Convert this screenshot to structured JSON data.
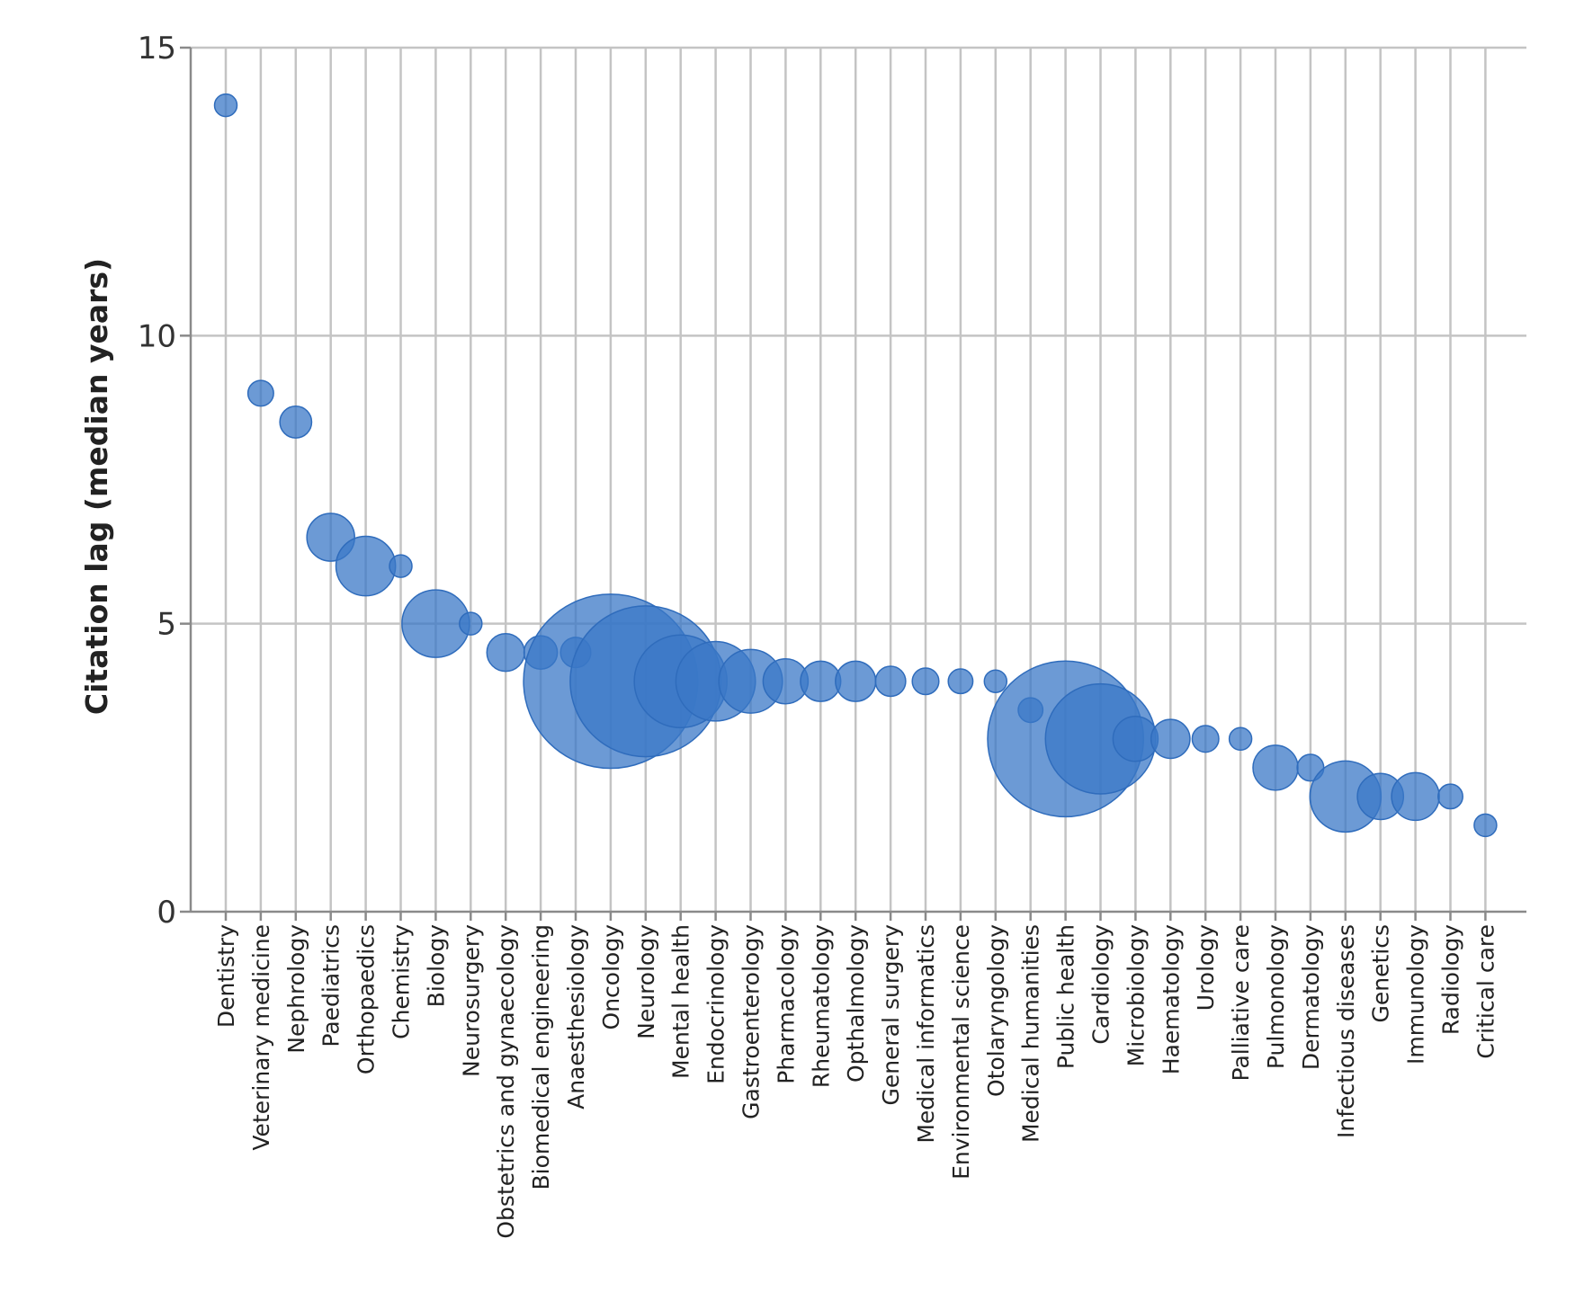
{
  "chart_data": {
    "type": "scatter",
    "subtype": "bubble",
    "title": "",
    "xlabel": "",
    "ylabel": "Citation lag (median years)",
    "ylim": [
      0,
      15
    ],
    "yticks": [
      "0",
      "5",
      "10",
      "15"
    ],
    "grid": true,
    "bubble_color": "#3b78c7",
    "points": [
      {
        "category": "Dentistry",
        "value": 14,
        "size": 1
      },
      {
        "category": "Veterinary medicine",
        "value": 9,
        "size": 1.3
      },
      {
        "category": "Nephrology",
        "value": 8.5,
        "size": 2
      },
      {
        "category": "Paediatrics",
        "value": 6.5,
        "size": 4.5
      },
      {
        "category": "Orthopaedics",
        "value": 6,
        "size": 7
      },
      {
        "category": "Chemistry",
        "value": 6,
        "size": 1
      },
      {
        "category": "Biology",
        "value": 5,
        "size": 9
      },
      {
        "category": "Neurosurgery",
        "value": 5,
        "size": 1
      },
      {
        "category": "Obstetrics and gynaecology",
        "value": 4.5,
        "size": 2.8
      },
      {
        "category": "Biomedical engineering",
        "value": 4.5,
        "size": 2.2
      },
      {
        "category": "Anaesthesiology",
        "value": 4.5,
        "size": 1.8
      },
      {
        "category": "Oncology",
        "value": 4,
        "size": 60
      },
      {
        "category": "Neurology",
        "value": 4,
        "size": 45
      },
      {
        "category": "Mental health",
        "value": 4,
        "size": 17
      },
      {
        "category": "Endocrinology",
        "value": 4,
        "size": 12.5
      },
      {
        "category": "Gastroenterology",
        "value": 4,
        "size": 8
      },
      {
        "category": "Pharmacology",
        "value": 4,
        "size": 4
      },
      {
        "category": "Rheumatology",
        "value": 4,
        "size": 3.2
      },
      {
        "category": "Opthalmology",
        "value": 4,
        "size": 3.2
      },
      {
        "category": "General surgery",
        "value": 4,
        "size": 1.8
      },
      {
        "category": "Medical informatics",
        "value": 4,
        "size": 1.4
      },
      {
        "category": "Environmental science",
        "value": 4,
        "size": 1.2
      },
      {
        "category": "Otolaryngology",
        "value": 4,
        "size": 1
      },
      {
        "category": "Medical humanities",
        "value": 3.5,
        "size": 1.2
      },
      {
        "category": "Public health",
        "value": 3,
        "size": 48
      },
      {
        "category": "Cardiology",
        "value": 3,
        "size": 24
      },
      {
        "category": "Microbiology",
        "value": 3,
        "size": 4
      },
      {
        "category": "Haematology",
        "value": 3,
        "size": 3
      },
      {
        "category": "Urology",
        "value": 3,
        "size": 1.4
      },
      {
        "category": "Palliative care",
        "value": 3,
        "size": 1
      },
      {
        "category": "Pulmonology",
        "value": 2.5,
        "size": 4
      },
      {
        "category": "Dermatology",
        "value": 2.5,
        "size": 1.4
      },
      {
        "category": "Infectious diseases",
        "value": 2,
        "size": 10
      },
      {
        "category": "Genetics",
        "value": 2,
        "size": 4.2
      },
      {
        "category": "Immunology",
        "value": 2,
        "size": 4.5
      },
      {
        "category": "Radiology",
        "value": 2,
        "size": 1.2
      },
      {
        "category": "Critical care",
        "value": 1.5,
        "size": 1
      }
    ]
  }
}
